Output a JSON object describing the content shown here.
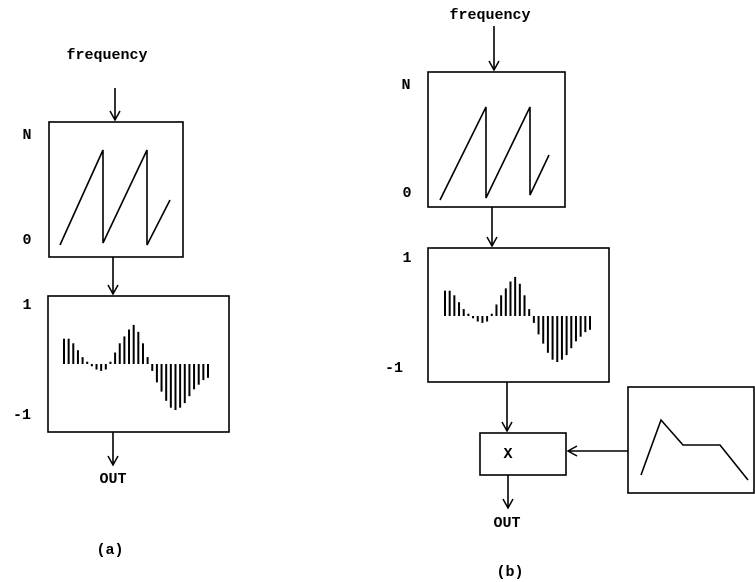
{
  "panels": [
    {
      "caption": "(a)",
      "input": "frequency",
      "phasor": {
        "top": "N",
        "bottom": "0"
      },
      "table": {
        "top": "1",
        "bottom": "-1"
      },
      "output": "OUT"
    },
    {
      "caption": "(b)",
      "input": "frequency",
      "phasor": {
        "top": "N",
        "bottom": "0"
      },
      "table": {
        "top": "1",
        "bottom": "-1"
      },
      "multiplier": "X",
      "output": "OUT"
    }
  ]
}
